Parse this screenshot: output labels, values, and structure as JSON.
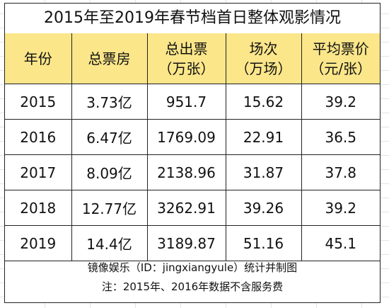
{
  "title": "2015年至2019年春节档首日整体观影情况",
  "headers": [
    {
      "line1": "年份",
      "line2": ""
    },
    {
      "line1": "总票房",
      "line2": ""
    },
    {
      "line1": "总出票",
      "line2": "（万张）"
    },
    {
      "line1": "场次",
      "line2": "（万场）"
    },
    {
      "line1": "平均票价",
      "line2": "（元/张）"
    }
  ],
  "rows": [
    [
      "2015",
      "3.73亿",
      "951.7",
      "15.62",
      "39.2"
    ],
    [
      "2016",
      "6.47亿",
      "1769.09",
      "22.91",
      "36.5"
    ],
    [
      "2017",
      "8.09亿",
      "2138.96",
      "31.87",
      "37.8"
    ],
    [
      "2018",
      "12.77亿",
      "3262.91",
      "39.26",
      "39.2"
    ],
    [
      "2019",
      "14.4亿",
      "3189.87",
      "51.16",
      "45.1"
    ]
  ],
  "footer": {
    "source": "镜像娱乐（ID：jingxiangyule）统计并制图",
    "note": "注：2015年、2016年数据不含服务费"
  },
  "colors": {
    "header_bg": "#fbe68a",
    "border": "#222222"
  }
}
